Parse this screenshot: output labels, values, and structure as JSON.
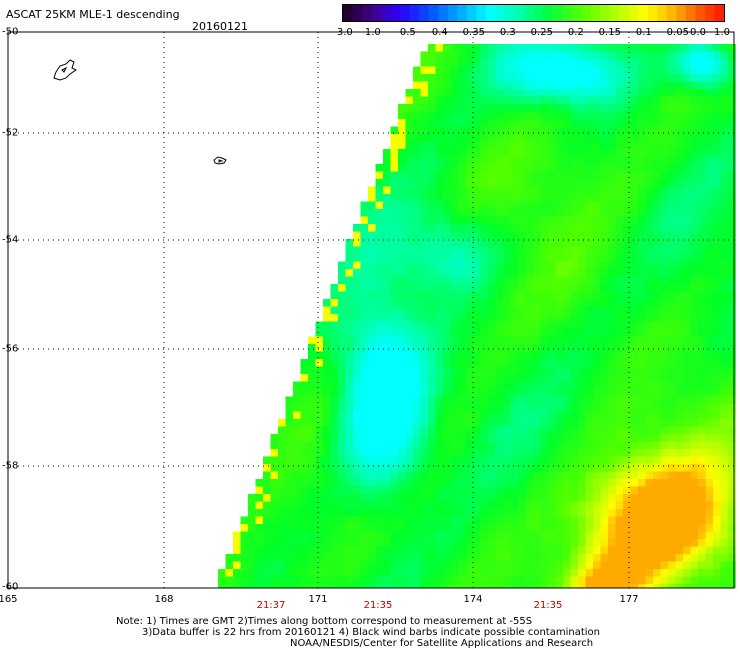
{
  "header": {
    "title": "ASCAT 25KM MLE-1 descending",
    "date": "20160121"
  },
  "colorbar": {
    "tick_labels": [
      "-3.0",
      "-1.0",
      "-0.5",
      "-0.4",
      "-0.35",
      "-0.3",
      "-0.25",
      "-0.2",
      "-0.15",
      "-0.1",
      "-0.05",
      "0.0",
      "1.0"
    ],
    "colors": [
      "#2a003a",
      "#5a00a8",
      "#2020ff",
      "#0078ff",
      "#00c8ff",
      "#00ffff",
      "#00ff9a",
      "#00ff00",
      "#7aff00",
      "#d4ff00",
      "#ffff00",
      "#ff9a00",
      "#ff2a00"
    ]
  },
  "axes": {
    "lat_labels": [
      "-50",
      "-52",
      "-54",
      "-56",
      "-58",
      "-60"
    ],
    "lon_labels": [
      "165",
      "168",
      "171",
      "174",
      "177"
    ],
    "time_labels": [
      "21:37",
      "21:35",
      "21:35"
    ]
  },
  "notes": {
    "line1": "Note: 1) Times are GMT 2)Times along bottom correspond to measurement at -55S",
    "line2": "3)Data buffer is 22 hrs from 20160121 4) Black wind barbs indicate possible contamination",
    "line3": "NOAA/NESDIS/Center for Satellite Applications and Research"
  }
}
